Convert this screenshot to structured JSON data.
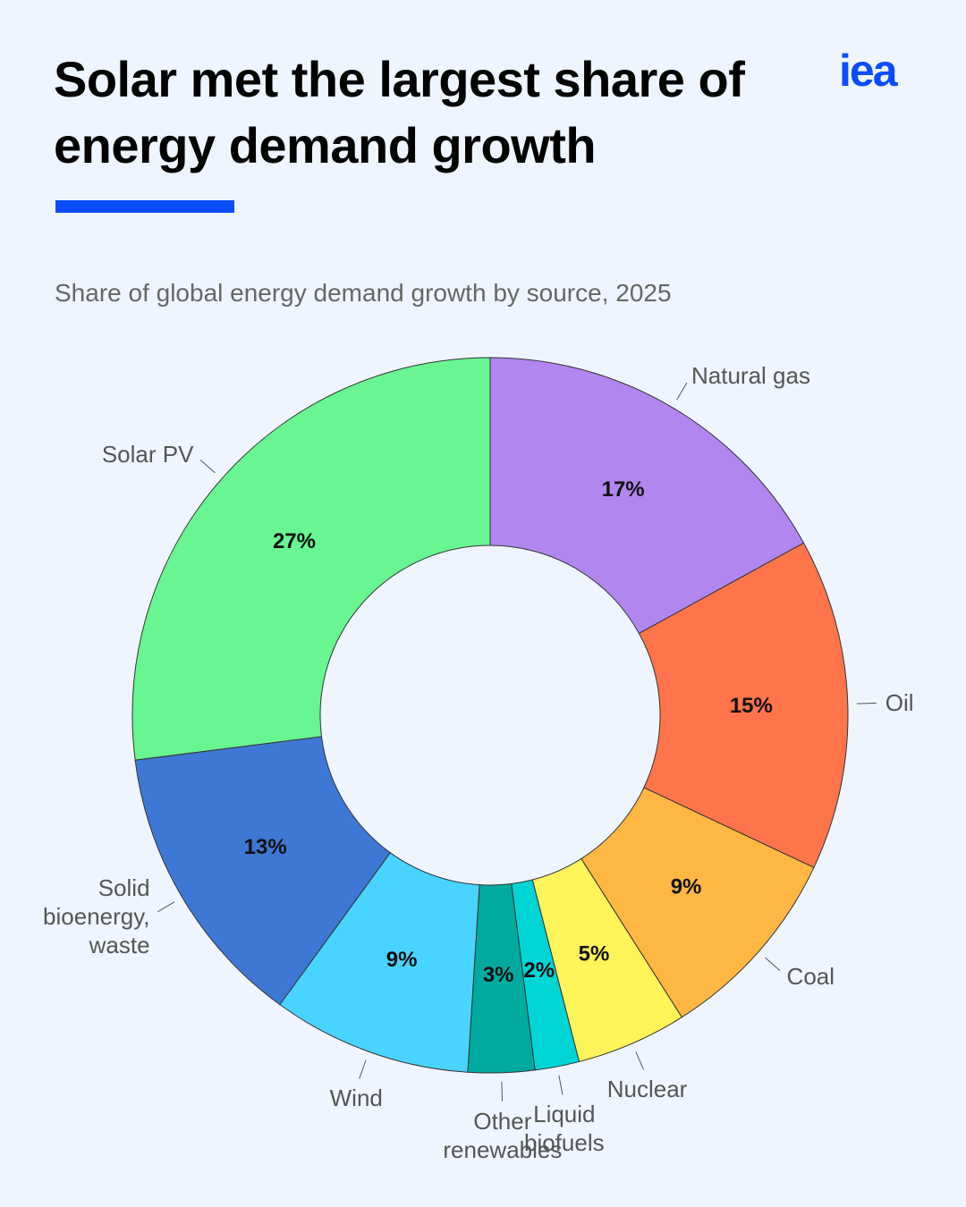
{
  "logo": "iea",
  "chart_data": {
    "type": "donut",
    "title": "Solar met the largest share of energy demand growth",
    "subtitle": "Share of global energy demand growth by source, 2025",
    "categories": [
      "Natural gas",
      "Oil",
      "Coal",
      "Nuclear",
      "Liquid biofuels",
      "Other renewables",
      "Wind",
      "Solid bioenergy, waste",
      "Solar PV"
    ],
    "values": [
      17,
      15,
      9,
      5,
      2,
      3,
      9,
      13,
      27
    ],
    "value_labels": [
      "17%",
      "15%",
      "9%",
      "5%",
      "2%",
      "3%",
      "9%",
      "13%",
      "27%"
    ],
    "colors": [
      "#b186ef",
      "#ff744a",
      "#ffb744",
      "#fff35a",
      "#00d5d5",
      "#00aa9f",
      "#48d4ff",
      "#3e78d5",
      "#68f592"
    ]
  }
}
